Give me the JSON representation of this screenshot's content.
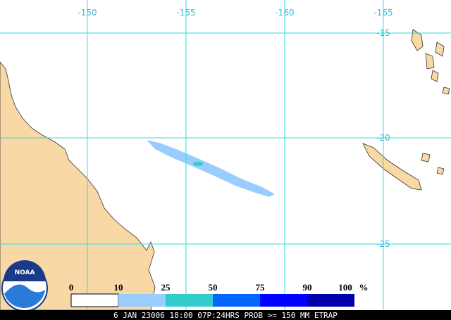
{
  "map": {
    "longitude_labels": [
      "-150",
      "-155",
      "-160",
      "-165"
    ],
    "latitude_labels": [
      "-15",
      "-20",
      "-25"
    ],
    "legend": {
      "labels": [
        "0",
        "10",
        "25",
        "50",
        "75",
        "90",
        "100"
      ],
      "unit": "%"
    },
    "logo": "NOAA",
    "footer": "6 JAN 23006 18:00 07P:24HRS PROB >= 150 MM ETRAP"
  }
}
